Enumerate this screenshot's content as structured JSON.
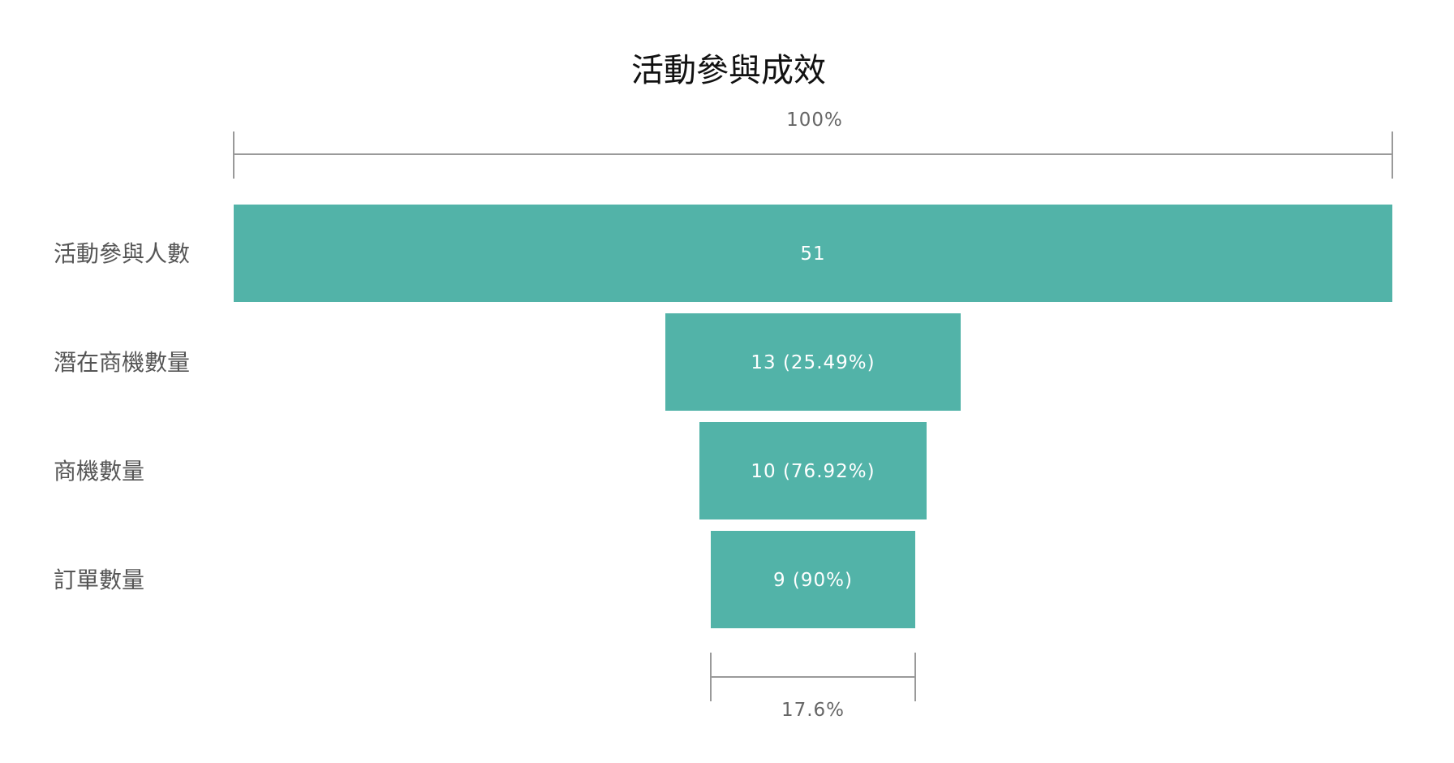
{
  "chart_data": {
    "type": "funnel",
    "title": "活動參與成效",
    "categories": [
      "活動參與人數",
      "潛在商機數量",
      "商機數量",
      "訂單數量"
    ],
    "values": [
      51,
      13,
      10,
      9
    ],
    "data_labels": [
      "51",
      "13 (25.49%)",
      "10 (76.92%)",
      "9 (90%)"
    ],
    "top_bracket_label": "100%",
    "bottom_bracket_label": "17.6%",
    "bar_color": "#52b3a8",
    "bracket_color": "#9a9a9a"
  }
}
